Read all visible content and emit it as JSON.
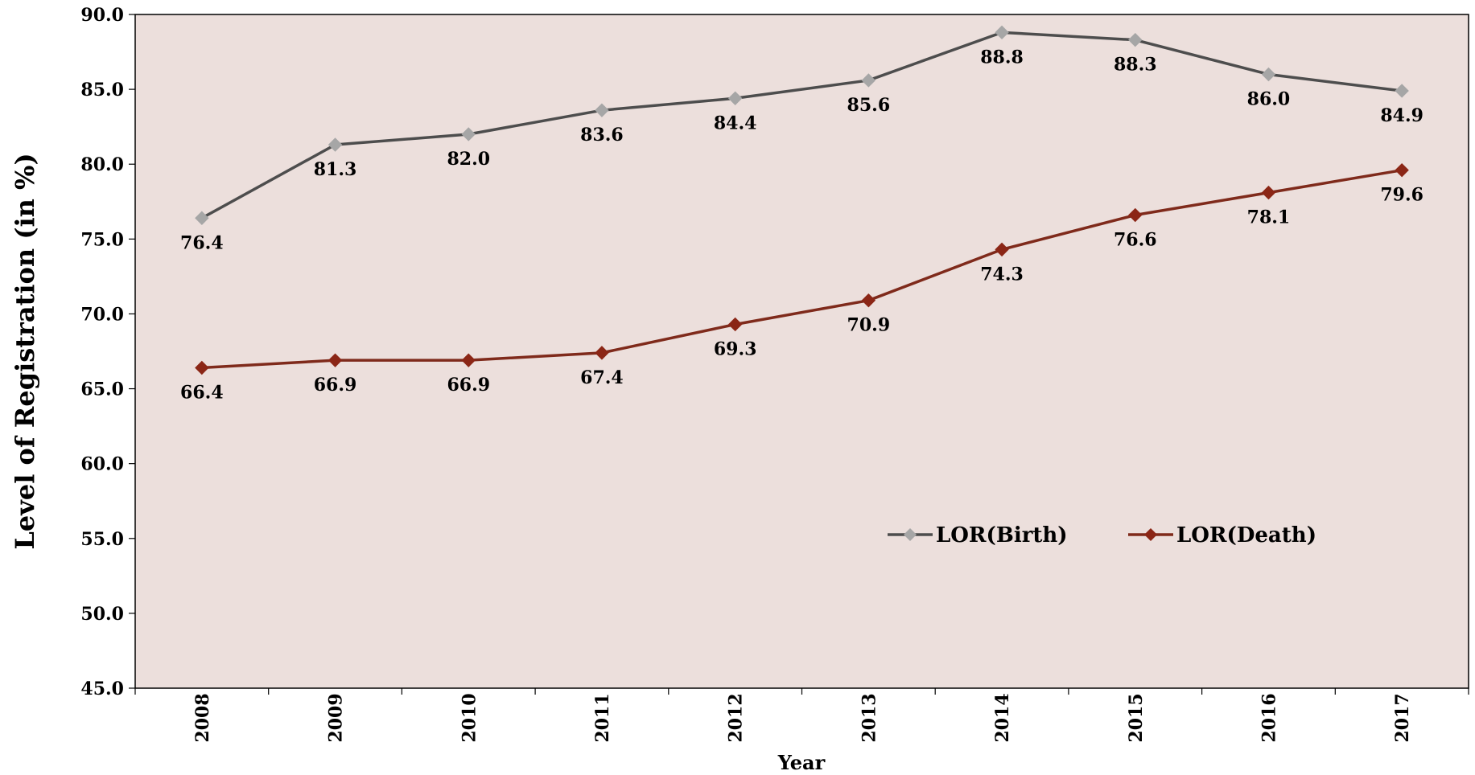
{
  "chart_data": {
    "type": "line",
    "title": "",
    "xlabel": "Year",
    "ylabel": "Level of Registration (in %)",
    "categories": [
      "2008",
      "2009",
      "2010",
      "2011",
      "2012",
      "2013",
      "2014",
      "2015",
      "2016",
      "2017"
    ],
    "ylim": [
      45.0,
      90.0
    ],
    "yticks": [
      "45.0",
      "50.0",
      "55.0",
      "60.0",
      "65.0",
      "70.0",
      "75.0",
      "80.0",
      "85.0",
      "90.0"
    ],
    "grid": false,
    "legend_position": "lower-right",
    "plot_background": "#ecdfdc",
    "series": [
      {
        "name": "LOR(Birth)",
        "values": [
          76.4,
          81.3,
          82.0,
          83.6,
          84.4,
          85.6,
          88.8,
          88.3,
          86.0,
          84.9
        ],
        "labels": [
          "76.4",
          "81.3",
          "82.0",
          "83.6",
          "84.4",
          "85.6",
          "88.8",
          "88.3",
          "86.0",
          "84.9"
        ],
        "line_color": "#4d4d4d",
        "marker_color": "#a6a6a6",
        "marker": "diamond"
      },
      {
        "name": "LOR(Death)",
        "values": [
          66.4,
          66.9,
          66.9,
          67.4,
          69.3,
          70.9,
          74.3,
          76.6,
          78.1,
          79.6
        ],
        "labels": [
          "66.4",
          "66.9",
          "66.9",
          "67.4",
          "69.3",
          "70.9",
          "74.3",
          "76.6",
          "78.1",
          "79.6"
        ],
        "line_color": "#7f2a1b",
        "marker_color": "#8b2616",
        "marker": "diamond"
      }
    ]
  }
}
